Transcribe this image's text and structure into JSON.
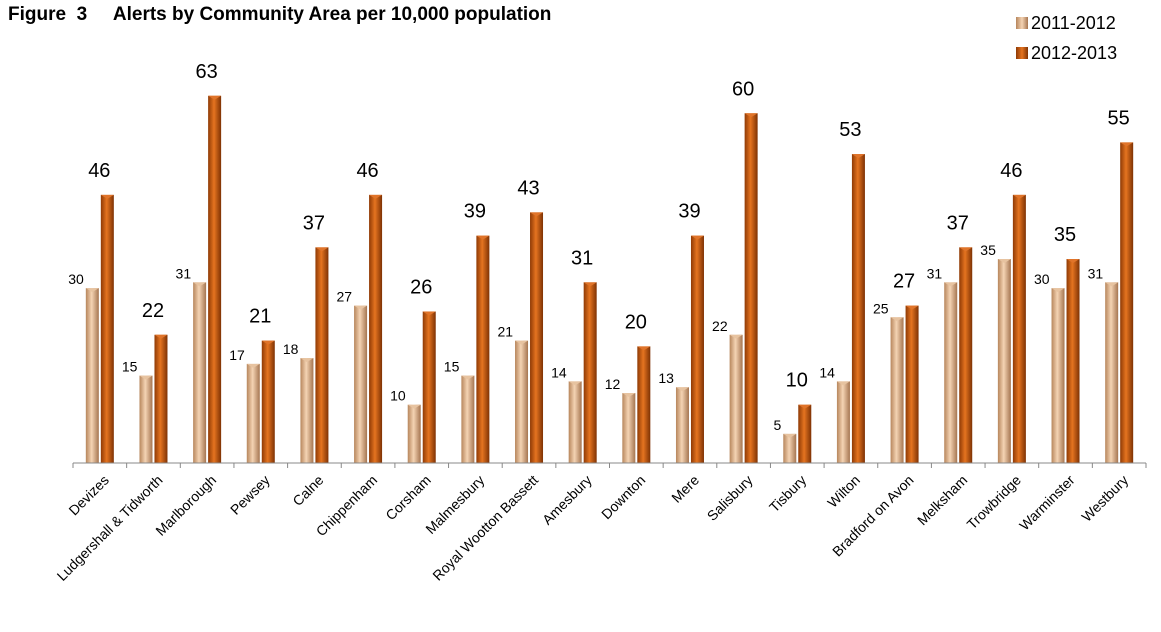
{
  "chart_data": {
    "type": "bar",
    "title": "Figure  3     Alerts by Community Area per 10,000 population",
    "categories": [
      "Devizes",
      "Ludgershall & Tidworth",
      "Marlborough",
      "Pewsey",
      "Calne",
      "Chippenham",
      "Corsham",
      "Malmesbury",
      "Royal Wootton Bassett",
      "Amesbury",
      "Downton",
      "Mere",
      "Salisbury",
      "Tisbury",
      "Wilton",
      "Bradford on Avon",
      "Melksham",
      "Trowbridge",
      "Warminster",
      "Westbury"
    ],
    "series": [
      {
        "name": "2011-2012",
        "values": [
          30,
          15,
          31,
          17,
          18,
          27,
          10,
          15,
          21,
          14,
          12,
          13,
          22,
          5,
          14,
          25,
          31,
          35,
          30,
          31
        ],
        "color": "#d9a57a"
      },
      {
        "name": "2012-2013",
        "values": [
          46,
          22,
          63,
          21,
          37,
          46,
          26,
          39,
          43,
          31,
          20,
          39,
          60,
          10,
          53,
          27,
          37,
          46,
          35,
          55
        ],
        "color": "#c9580c"
      }
    ],
    "ylim": [
      0,
      70
    ],
    "grid": false,
    "legend": "top-right"
  }
}
